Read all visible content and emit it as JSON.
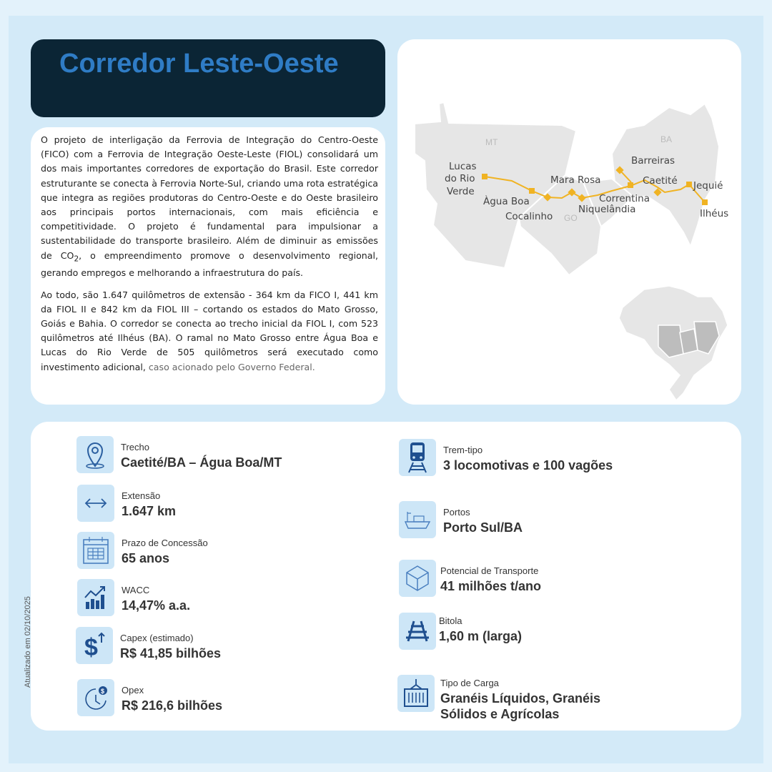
{
  "title": "Corredor Leste-Oeste",
  "description": {
    "p1_before": "O projeto de interligação da Ferrovia de Integração do Centro-Oeste (FICO) com a Ferrovia de Integração Oeste-Leste (FIOL) consolidará um dos mais importantes corredores de exportação do Brasil. Este corredor estruturante se conecta à Ferrovia Norte-Sul, criando uma rota estratégica que integra as regiões produtoras do Centro-Oeste e do Oeste brasileiro aos principais portos internacionais, com mais eficiência e competitividade. O projeto é fundamental para impulsionar a sustentabilidade do transporte brasileiro. Além de diminuir as emissões de CO",
    "p1_sub": "2",
    "p1_after": ", o empreendimento promove o desenvolvimento regional, gerando empregos e melhorando a infraestrutura do país.",
    "p2_main": "Ao todo, são 1.647 quilômetros de extensão - 364 km da FICO I, 441 km da FIOL II e 842 km da FIOL III – cortando os estados do Mato Grosso, Goiás e Bahia. O corredor se conecta ao trecho inicial da FIOL I, com 523 quilômetros até Ilhéus (BA). O ramal no Mato Grosso entre Água Boa e Lucas do Rio Verde de 505 quilômetros será executado como investimento adicional,",
    "p2_grey": " caso acionado pelo Governo Federal."
  },
  "map": {
    "states": [
      "MT",
      "GO",
      "BA"
    ],
    "cities": [
      "Lucas",
      "do Rio",
      "Verde",
      "Àgua Boa",
      "Cocalinho",
      "Mara Rosa",
      "Niquelândia",
      "Correntina",
      "Barreiras",
      "Caetité",
      "Jequié",
      "Ilhéus"
    ],
    "route_color": "#f0b323"
  },
  "stats": {
    "trecho": {
      "label": "Trecho",
      "value": "Caetité/BA – Água Boa/MT",
      "icon": "location-pin-icon"
    },
    "extensao": {
      "label": "Extensão",
      "value": "1.647 km",
      "icon": "double-arrow-icon"
    },
    "prazo": {
      "label": "Prazo de Concessão",
      "value": "65 anos",
      "icon": "calendar-icon"
    },
    "wacc": {
      "label": "WACC",
      "value": "14,47% a.a.",
      "icon": "growth-chart-icon"
    },
    "capex": {
      "label": "Capex (estimado)",
      "value": "R$ 41,85 bilhões",
      "icon": "dollar-up-icon"
    },
    "opex": {
      "label": "Opex",
      "value": "R$ 216,6 bilhões",
      "icon": "clock-dollar-icon"
    },
    "trem": {
      "label": "Trem-tipo",
      "value": "3 locomotivas e 100 vagões",
      "icon": "train-icon"
    },
    "portos": {
      "label": "Portos",
      "value": "Porto Sul/BA",
      "icon": "ship-icon"
    },
    "potencial": {
      "label": "Potencial de Transporte",
      "value": "41 milhões t/ano",
      "icon": "box-icon"
    },
    "bitola": {
      "label": "Bitola",
      "value": "1,60 m (larga)",
      "icon": "rail-track-icon"
    },
    "carga": {
      "label": "Tipo de Carga",
      "value": "Granéis Líquidos, Granéis Sólidos e Agrícolas",
      "icon": "container-icon"
    }
  },
  "updated": "Atualizado  em 02/10/2025"
}
